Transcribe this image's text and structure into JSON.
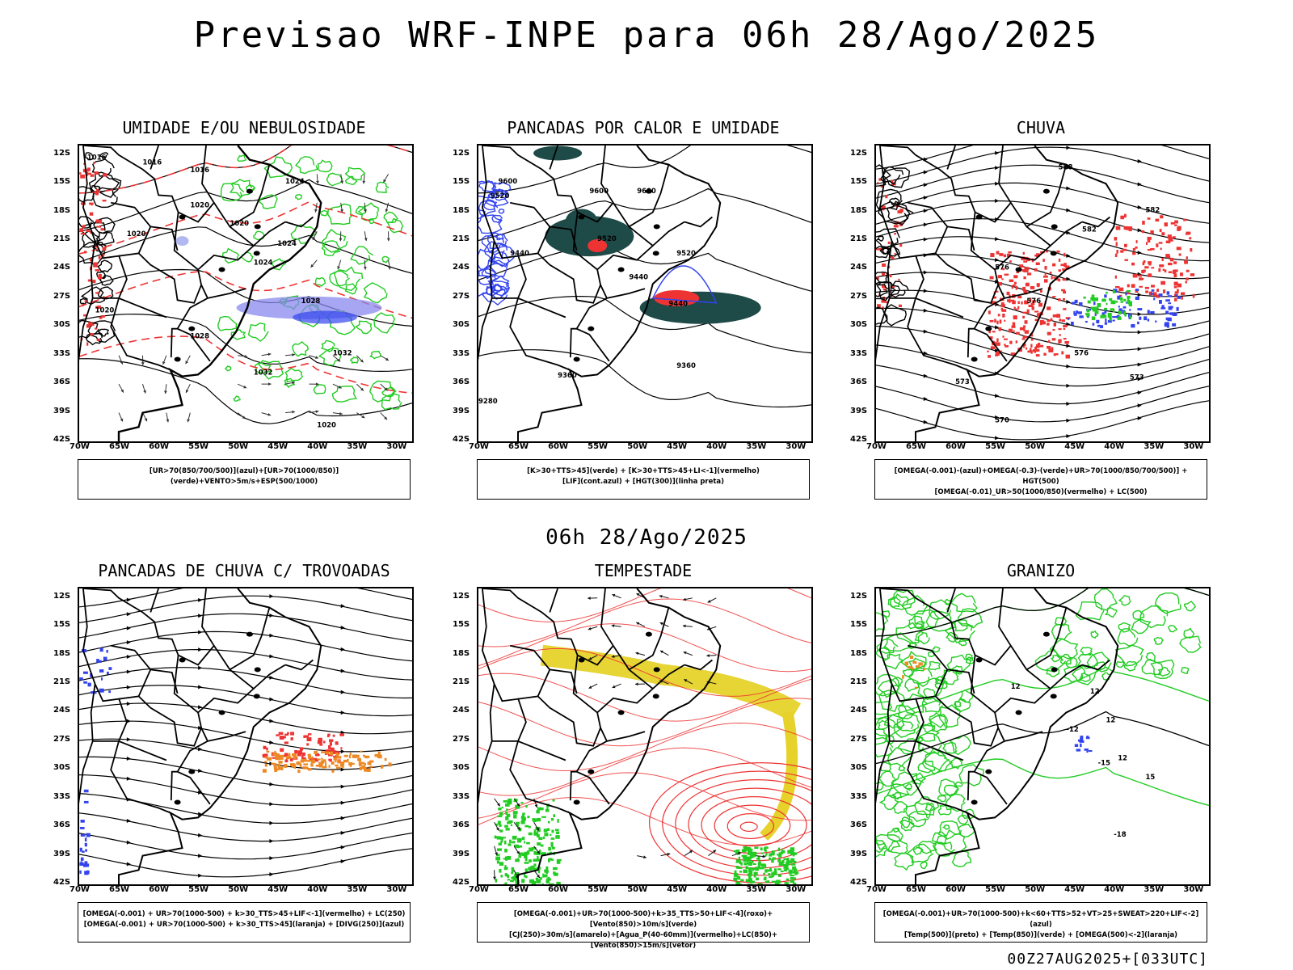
{
  "title": "Previsao WRF-INPE  para 06h 28/Ago/2025",
  "mid_label": "06h 28/Ago/2025",
  "footer": "00Z27AUG2025+[033UTC]",
  "lat_labels": [
    "12S",
    "15S",
    "18S",
    "21S",
    "24S",
    "27S",
    "30S",
    "33S",
    "36S",
    "39S",
    "42S"
  ],
  "lon_labels": [
    "70W",
    "65W",
    "60W",
    "55W",
    "50W",
    "45W",
    "40W",
    "35W",
    "30W"
  ],
  "colors": {
    "green": "#22cc22",
    "red": "#ee3333",
    "blue": "#3344ee",
    "lavender": "#8888ee",
    "darkteal": "#1e4a48",
    "yellow": "#e6d22a",
    "orange": "#ee8822"
  },
  "panels": [
    {
      "title": "UMIDADE E/OU NEBULOSIDADE",
      "legend": [
        "[UR>70(850/700/500)](azul)+[UR>70(1000/850)](verde)+VENTO>5m/s+ESP(500/1000)"
      ],
      "labels": [
        "1016",
        "1016",
        "1016",
        "1020",
        "1020",
        "1020",
        "1024",
        "1024",
        "1024",
        "1028",
        "1028",
        "1032",
        "1032",
        "1020",
        "1020"
      ]
    },
    {
      "title": "PANCADAS POR CALOR E UMIDADE",
      "legend": [
        "[K>30+TTS>45](verde) + [K>30+TTS>45+LI<-1](vermelho)",
        "[LIF](cont.azul) + [HGT(300)](linha preta)"
      ],
      "labels": [
        "9600",
        "9520",
        "9440",
        "9600",
        "9520",
        "9600",
        "9520",
        "9440",
        "9440",
        "9360",
        "9360",
        "9280"
      ]
    },
    {
      "title": "CHUVA",
      "legend": [
        "[OMEGA(-0.001)-(azul)+OMEGA(-0.3)-(verde)+UR>70(1000/850/700/500)] + HGT(500)",
        "[OMEGA(-0.01)_UR>50(1000/850)(vermelho) + LC(500)"
      ],
      "labels": [
        "588",
        "582",
        "576",
        "576",
        "573",
        "573",
        "570",
        "576",
        "582"
      ]
    },
    {
      "title": "PANCADAS DE CHUVA C/ TROVOADAS",
      "legend": [
        "[OMEGA(-0.001) + UR>70(1000-500) + k>30_TTS>45+LIF<-1](vermelho) + LC(250)",
        "[OMEGA(-0.001) + UR>70(1000-500) + k>30_TTS>45](laranja) + [DIVG(250)](azul)"
      ],
      "labels": []
    },
    {
      "title": "TEMPESTADE",
      "legend": [
        "[OMEGA(-0.001)+UR>70(1000-500)+k>35_TTS>50+LIF<-4](roxo)+[Vento(850)>10m/s](verde)",
        "[CJ(250)>30m/s](amarelo)+[Agua_P(40-60mm)](vermelho)+LC(850)+[Vento(850)>15m/s](vetor)"
      ],
      "labels": []
    },
    {
      "title": "GRANIZO",
      "legend": [
        "[OMEGA(-0.001)+UR>70(1000-500)+k<60+TTS>52+VT>25+SWEAT>220+LIF<-2](azul)",
        "[Temp(500)](preto) + [Temp(850)](verde) + [OMEGA(500)<-2](laranja)"
      ],
      "labels": [
        "12",
        "12",
        "12",
        "-15",
        "-12",
        "-18",
        "15",
        "12"
      ]
    }
  ]
}
